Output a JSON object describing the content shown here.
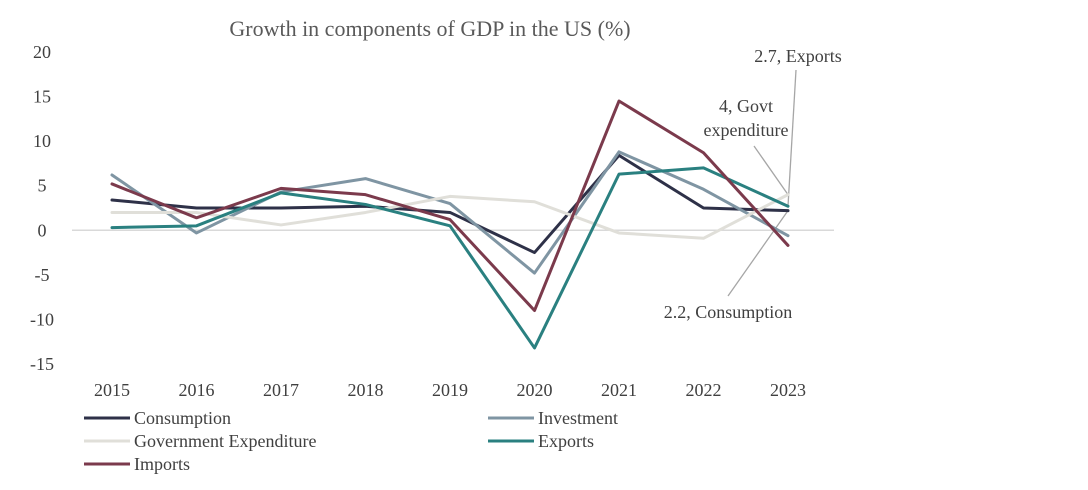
{
  "chart_data": {
    "type": "line",
    "title": "Growth in components of GDP in the US (%)",
    "xlabel": "",
    "ylabel": "",
    "categories": [
      "2015",
      "2016",
      "2017",
      "2018",
      "2019",
      "2020",
      "2021",
      "2022",
      "2023"
    ],
    "ylim": [
      -15,
      20
    ],
    "yticks": [
      20,
      15,
      10,
      5,
      0,
      -5,
      -10,
      -15
    ],
    "ytick_labels": [
      "20",
      "15",
      "10",
      "5",
      "0",
      "-5",
      "-10",
      "-15"
    ],
    "grid": false,
    "legend_position": "bottom",
    "series": [
      {
        "name": "Consumption",
        "color": "#2e3148",
        "values": [
          3.4,
          2.5,
          2.5,
          2.7,
          2.0,
          -2.5,
          8.4,
          2.5,
          2.2
        ]
      },
      {
        "name": "Investment",
        "color": "#7f95a3",
        "values": [
          6.2,
          -0.3,
          4.3,
          5.8,
          3.0,
          -4.8,
          8.8,
          4.6,
          -0.6
        ]
      },
      {
        "name": "Government Expenditure",
        "color": "#e0dfd9",
        "values": [
          2.0,
          2.0,
          0.6,
          2.0,
          3.8,
          3.2,
          -0.3,
          -0.9,
          4.0
        ]
      },
      {
        "name": "Exports",
        "color": "#2a8080",
        "values": [
          0.3,
          0.5,
          4.2,
          2.9,
          0.5,
          -13.2,
          6.3,
          7.0,
          2.7
        ]
      },
      {
        "name": "Imports",
        "color": "#7b3a4c",
        "values": [
          5.2,
          1.4,
          4.7,
          4.0,
          1.2,
          -9.0,
          14.5,
          8.7,
          -1.7
        ]
      }
    ],
    "annotations": [
      {
        "text": "2.7, Exports",
        "series": "Exports",
        "category": "2023"
      },
      {
        "text": "4, Govt expenditure",
        "line1": "4, Govt",
        "line2": "expenditure",
        "series": "Government Expenditure",
        "category": "2023"
      },
      {
        "text": "2.2, Consumption",
        "series": "Consumption",
        "category": "2023"
      }
    ]
  }
}
